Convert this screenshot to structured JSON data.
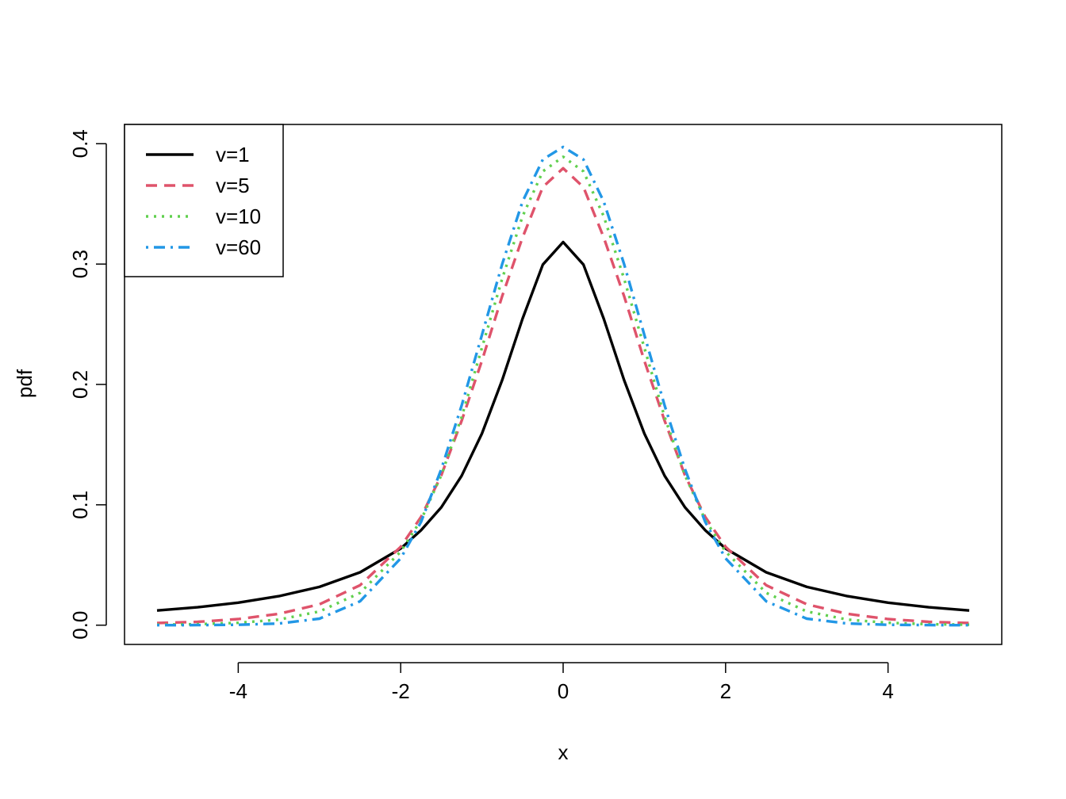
{
  "chart_data": {
    "type": "line",
    "xlabel": "x",
    "ylabel": "pdf",
    "xlim": [
      -5,
      5
    ],
    "ylim": [
      0,
      0.4
    ],
    "x_ticks": [
      -4,
      -2,
      0,
      2,
      4
    ],
    "x_tick_labels": [
      "-4",
      "-2",
      "0",
      "2",
      "4"
    ],
    "y_ticks": [
      0,
      0.1,
      0.2,
      0.3,
      0.4
    ],
    "y_tick_labels": [
      "0.0",
      "0.1",
      "0.2",
      "0.3",
      "0.4"
    ],
    "grid": false,
    "legend_position": "top-left",
    "x": [
      -5,
      -4.5,
      -4,
      -3.5,
      -3,
      -2.5,
      -2,
      -1.75,
      -1.5,
      -1.25,
      -1,
      -0.75,
      -0.5,
      -0.25,
      0,
      0.25,
      0.5,
      0.75,
      1,
      1.25,
      1.5,
      1.75,
      2,
      2.5,
      3,
      3.5,
      4,
      4.5,
      5
    ],
    "series": [
      {
        "name": "v=1",
        "color": "#000000",
        "style": "solid",
        "values": [
          0.0122,
          0.0149,
          0.0187,
          0.0241,
          0.0318,
          0.0439,
          0.0637,
          0.0788,
          0.0979,
          0.1241,
          0.1592,
          0.2037,
          0.2546,
          0.2996,
          0.3183,
          0.2996,
          0.2546,
          0.2037,
          0.1592,
          0.1241,
          0.0979,
          0.0788,
          0.0637,
          0.0439,
          0.0318,
          0.0241,
          0.0187,
          0.0149,
          0.0122
        ]
      },
      {
        "name": "v=5",
        "color": "#DF536B",
        "style": "dashed",
        "values": [
          0.0018,
          0.0028,
          0.0051,
          0.0094,
          0.0173,
          0.0332,
          0.0651,
          0.0899,
          0.1245,
          0.1698,
          0.2197,
          0.2735,
          0.322,
          0.364,
          0.3796,
          0.364,
          0.322,
          0.2735,
          0.2197,
          0.1698,
          0.1245,
          0.0899,
          0.0651,
          0.0332,
          0.0173,
          0.0094,
          0.0051,
          0.0028,
          0.0018
        ]
      },
      {
        "name": "v=10",
        "color": "#61D04F",
        "style": "dotted",
        "values": [
          0.0004,
          0.0008,
          0.002,
          0.0046,
          0.0114,
          0.0269,
          0.0611,
          0.0873,
          0.1246,
          0.1729,
          0.2304,
          0.288,
          0.3397,
          0.377,
          0.3891,
          0.377,
          0.3397,
          0.288,
          0.2304,
          0.1729,
          0.1246,
          0.0873,
          0.0611,
          0.0269,
          0.0114,
          0.0046,
          0.002,
          0.0008,
          0.0004
        ]
      },
      {
        "name": "v=60",
        "color": "#2297E6",
        "style": "dotdash",
        "values": [
          0.0,
          0.0001,
          0.0003,
          0.0014,
          0.0054,
          0.0198,
          0.0555,
          0.0857,
          0.1297,
          0.1824,
          0.2411,
          0.3001,
          0.3519,
          0.3869,
          0.3973,
          0.3869,
          0.3519,
          0.3001,
          0.2411,
          0.1824,
          0.1297,
          0.0857,
          0.0555,
          0.0198,
          0.0054,
          0.0014,
          0.0003,
          0.0001,
          0.0
        ]
      }
    ]
  }
}
